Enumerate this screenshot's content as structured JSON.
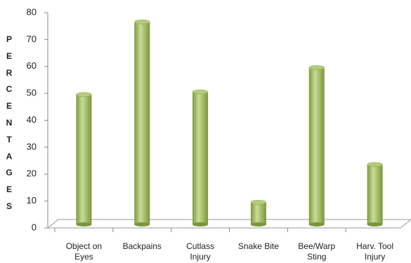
{
  "chart_data": {
    "type": "bar",
    "y_label": "PERCENTAGES",
    "categories": [
      "Object on Eyes",
      "Backpains",
      "Cutlass Injury",
      "Snake Bite",
      "Bee/Warp Sting",
      "Harv. Tool Injury"
    ],
    "values": [
      48,
      75,
      49,
      8,
      58,
      22
    ],
    "color": "#9bbb59",
    "ylim": [
      0,
      80
    ],
    "yticks": [
      0,
      10,
      20,
      30,
      40,
      50,
      60,
      70,
      80
    ]
  }
}
